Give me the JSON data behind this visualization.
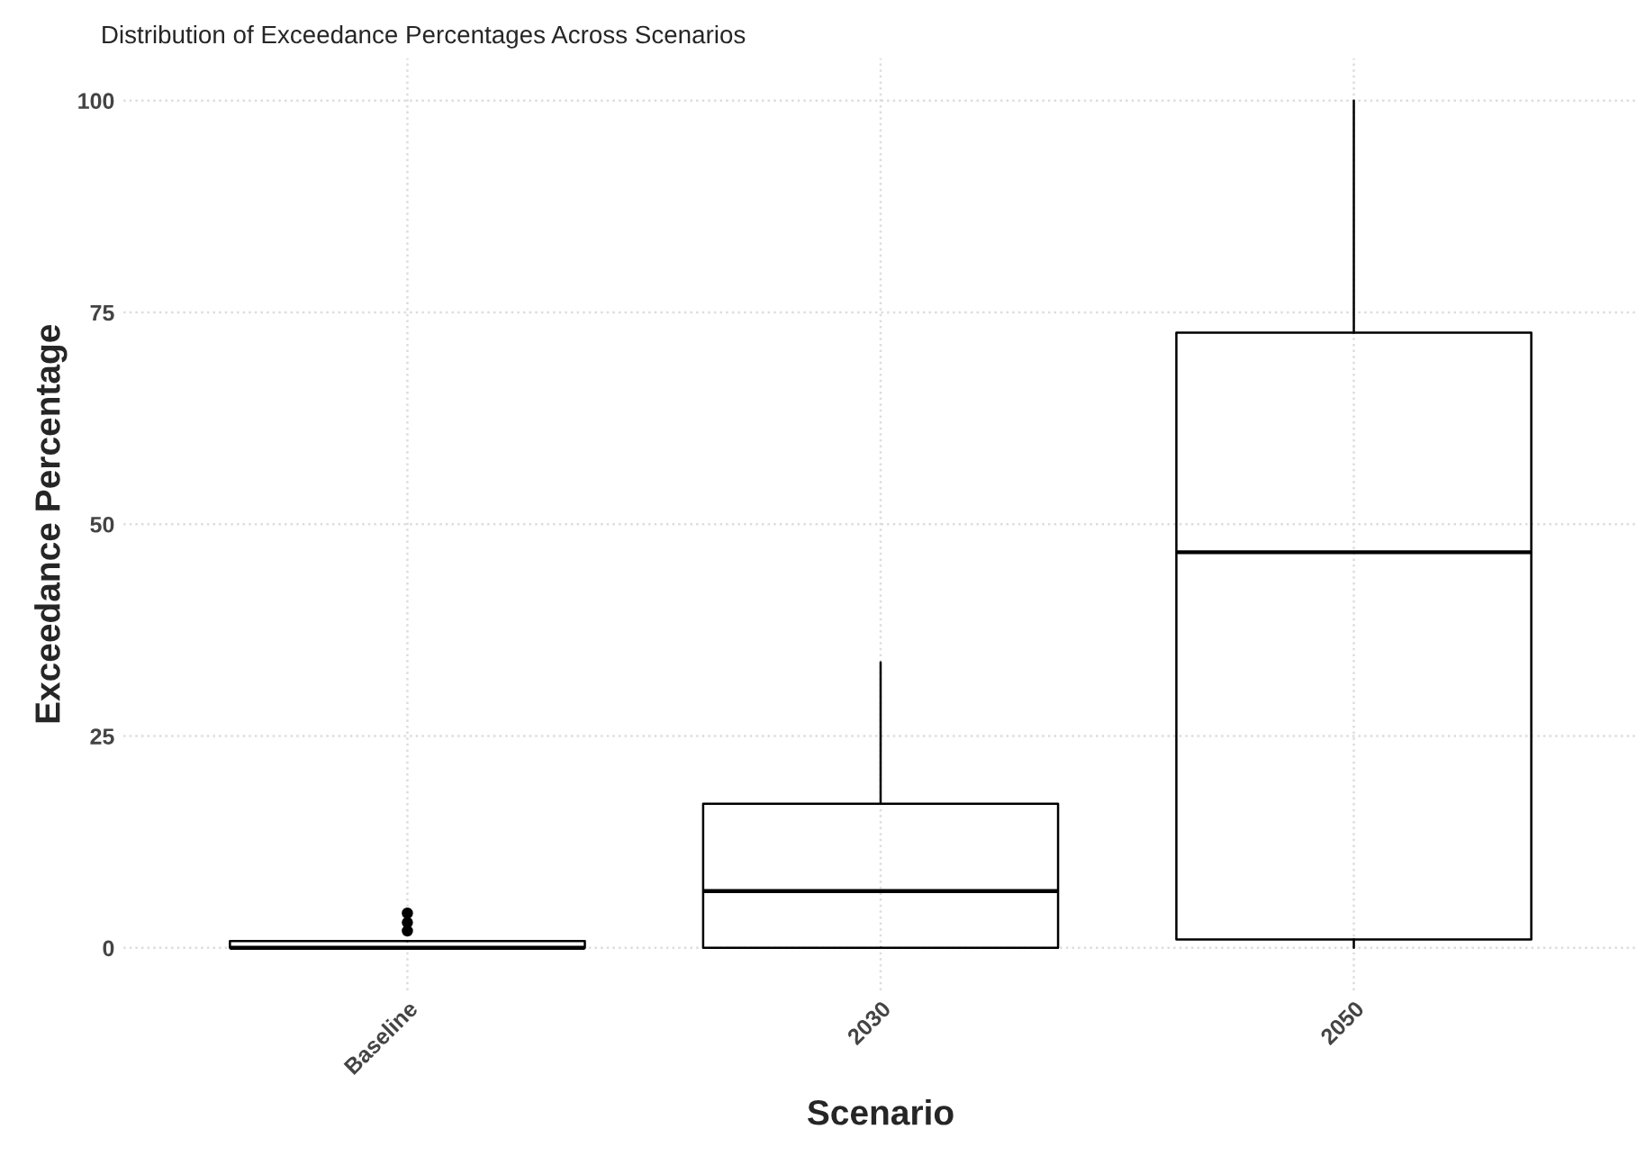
{
  "chart_data": {
    "type": "box",
    "title": "Distribution of Exceedance Percentages Across Scenarios",
    "xlabel": "Scenario",
    "ylabel": "Exceedance Percentage",
    "categories": [
      "Baseline",
      "2030",
      "2050"
    ],
    "boxes": [
      {
        "low": 0,
        "q1": 0,
        "median": 0,
        "q3": 0.8,
        "high": 0.8,
        "outliers": [
          2,
          3,
          4.1
        ]
      },
      {
        "low": 0,
        "q1": 0,
        "median": 6.7,
        "q3": 17,
        "high": 33.7
      },
      {
        "low": 0,
        "q1": 1,
        "median": 46.7,
        "q3": 72.6,
        "high": 100
      }
    ],
    "color": "#000000",
    "ylim": [
      -5,
      105
    ],
    "yticks": [
      0,
      25,
      50,
      75,
      100
    ],
    "grid": true,
    "legend": false
  }
}
